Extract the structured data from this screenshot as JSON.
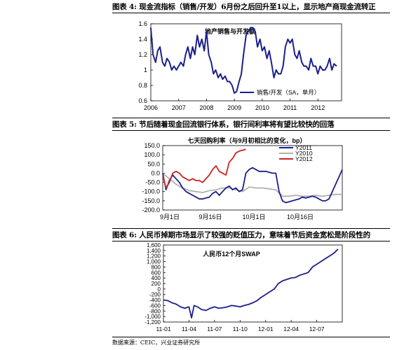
{
  "figures": [
    {
      "caption": "图表 4: 现金流指标（销售/开发）6月份之后回升至1以上，显示地产商现金流转正"
    },
    {
      "caption": "图表 5: 节后随着现金回流银行体系，银行间利率将有望比较快的回落"
    },
    {
      "caption": "图表 6: 人民币掉期市场显示了较强的贬值压力，意味着节后资金宽松是阶段性的"
    }
  ],
  "source": "数据来源：CEIC，兴业证券研究所",
  "colors": {
    "navy": "#1b1f8a",
    "gray": "#b0b0b0",
    "red": "#cc2222"
  },
  "chart_data": [
    {
      "type": "line",
      "title": "地产销售与开发额",
      "x_ticks": [
        "2006",
        "2007",
        "2008",
        "2009",
        "2010",
        "2011",
        "2012"
      ],
      "y_ticks": [
        "1.6",
        "1.4",
        "1.2",
        "1",
        "0.8",
        "0.6"
      ],
      "ylim": [
        0.6,
        1.6
      ],
      "legend": "top-right-bottom",
      "series": [
        {
          "name": "销售/开发（SA，单月）",
          "x": [
            2006.0,
            2006.08,
            2006.17,
            2006.25,
            2006.33,
            2006.42,
            2006.5,
            2006.58,
            2006.67,
            2006.75,
            2006.83,
            2006.92,
            2007.0,
            2007.08,
            2007.17,
            2007.25,
            2007.33,
            2007.42,
            2007.5,
            2007.58,
            2007.67,
            2007.75,
            2007.83,
            2007.92,
            2008.0,
            2008.08,
            2008.17,
            2008.25,
            2008.33,
            2008.42,
            2008.5,
            2008.58,
            2008.67,
            2008.75,
            2008.83,
            2008.92,
            2009.0,
            2009.08,
            2009.17,
            2009.25,
            2009.33,
            2009.42,
            2009.5,
            2009.58,
            2009.67,
            2009.75,
            2009.83,
            2009.92,
            2010.0,
            2010.08,
            2010.17,
            2010.25,
            2010.33,
            2010.42,
            2010.5,
            2010.58,
            2010.67,
            2010.75,
            2010.83,
            2010.92,
            2011.0,
            2011.08,
            2011.17,
            2011.25,
            2011.33,
            2011.42,
            2011.5,
            2011.58,
            2011.67,
            2011.75,
            2011.83,
            2011.92,
            2012.0,
            2012.08,
            2012.17,
            2012.25,
            2012.33,
            2012.42,
            2012.5,
            2012.58,
            2012.67
          ],
          "y": [
            1.55,
            1.2,
            1.1,
            1.25,
            1.3,
            1.1,
            1.05,
            1.15,
            1.1,
            1.0,
            1.05,
            1.0,
            1.05,
            1.1,
            1.05,
            1.2,
            1.3,
            1.15,
            1.3,
            1.2,
            1.45,
            1.3,
            1.4,
            1.25,
            1.5,
            1.2,
            1.1,
            0.95,
            1.0,
            0.9,
            0.95,
            0.88,
            0.92,
            0.85,
            0.85,
            0.8,
            0.7,
            0.72,
            0.85,
            0.95,
            1.2,
            1.45,
            1.5,
            1.55,
            1.55,
            1.5,
            1.3,
            1.4,
            1.25,
            1.3,
            1.15,
            1.25,
            1.1,
            0.9,
            1.0,
            0.95,
            0.95,
            1.05,
            1.3,
            1.4,
            1.35,
            1.4,
            1.2,
            1.15,
            1.25,
            1.1,
            1.05,
            1.05,
            1.0,
            1.15,
            1.05,
            1.05,
            0.95,
            1.05,
            1.0,
            1.0,
            1.05,
            1.15,
            1.0,
            1.08,
            1.05
          ]
        }
      ]
    },
    {
      "type": "line",
      "title": "七天回购利率（与9月初相比的变化，bp）",
      "x_ticks": [
        "9月1日",
        "9月16日",
        "10月1日",
        "10月16日"
      ],
      "y_ticks": [
        "150.0",
        "100.0",
        "50.0",
        "0.0",
        "-50.0",
        "-100.0",
        "-150.0",
        "-200.0"
      ],
      "ylim": [
        -200,
        150
      ],
      "legend": "top-right",
      "series": [
        {
          "name": "Y2011",
          "color": "navy",
          "x": [
            0,
            1,
            2,
            3,
            4,
            5,
            6,
            7,
            8,
            9,
            10,
            11,
            12,
            13,
            14,
            15,
            16,
            17,
            18,
            19,
            20,
            21,
            22,
            23,
            24,
            25,
            26,
            27,
            28,
            29,
            30,
            31,
            32,
            33,
            34,
            35,
            36,
            37,
            38,
            39,
            40,
            41,
            42,
            43,
            44,
            45,
            46,
            47,
            48,
            49,
            50,
            51,
            52,
            53,
            54
          ],
          "y": [
            0,
            -90,
            -40,
            -10,
            -30,
            -50,
            -80,
            -100,
            -110,
            -120,
            -130,
            -140,
            -140,
            -135,
            -130,
            -110,
            -100,
            -120,
            -100,
            -80,
            -70,
            -90,
            -80,
            -100,
            -90,
            0,
            20,
            30,
            20,
            10,
            10,
            10,
            5,
            0,
            0,
            -100,
            -150,
            -160,
            -155,
            -150,
            -145,
            -140,
            -130,
            -135,
            -130,
            -125,
            -130,
            -140,
            -150,
            -150,
            -140,
            -100,
            -60,
            -20,
            20
          ]
        },
        {
          "name": "Y2010",
          "color": "gray",
          "x": [
            0,
            2,
            4,
            6,
            8,
            10,
            12,
            14,
            16,
            18,
            20,
            22,
            24,
            26,
            28,
            30,
            32,
            34,
            36,
            38,
            40,
            42,
            44,
            46,
            48,
            50,
            52,
            54
          ],
          "y": [
            0,
            -30,
            -60,
            -80,
            -95,
            -100,
            -105,
            -95,
            -90,
            -80,
            -80,
            -90,
            -100,
            -75,
            -80,
            -80,
            -85,
            -90,
            -125,
            -125,
            -120,
            -125,
            -125,
            -120,
            -125,
            -120,
            -115,
            -115
          ]
        },
        {
          "name": "Y2012",
          "color": "red",
          "x": [
            0,
            1,
            2,
            3,
            4,
            5,
            6,
            7,
            8,
            9,
            10,
            11,
            12,
            13,
            14,
            15,
            16,
            17,
            18,
            19,
            20,
            21,
            22,
            23,
            24,
            25
          ],
          "y": [
            -10,
            -80,
            -50,
            0,
            10,
            0,
            -20,
            -30,
            -40,
            -30,
            -40,
            -40,
            -50,
            -30,
            -10,
            20,
            40,
            10,
            0,
            -10,
            60,
            80,
            110,
            120,
            125,
            130
          ]
        }
      ]
    },
    {
      "type": "line",
      "title": "人民币12个月SWAP",
      "x_ticks": [
        "11-01",
        "11-04",
        "11-07",
        "11-10",
        "12-01",
        "12-04",
        "12-07"
      ],
      "y_ticks": [
        "1,600",
        "1,400",
        "1,200",
        "1,000",
        "800",
        "600",
        "400",
        "200",
        "0",
        "-200",
        "-400",
        "-600",
        "-800",
        "-1,000",
        "-1,200"
      ],
      "ylim": [
        -1200,
        1600
      ],
      "series": [
        {
          "name": "",
          "x": [
            0,
            0.5,
            1,
            1.5,
            2,
            2.5,
            3,
            3.3,
            3.6,
            4,
            4.5,
            5,
            5.5,
            6,
            6.5,
            7,
            7.5,
            8,
            8.5,
            9,
            9.5,
            10,
            10.5,
            11,
            11.5,
            12,
            12.5,
            13,
            13.5,
            14,
            14.5,
            15,
            15.5,
            16,
            16.5,
            17,
            17.5,
            18,
            18.5,
            19,
            19.5,
            20,
            20.5
          ],
          "y": [
            -400,
            -420,
            -500,
            -550,
            -650,
            -700,
            -650,
            -1050,
            -600,
            -650,
            -750,
            -780,
            -700,
            -650,
            -700,
            -680,
            -650,
            -600,
            -620,
            -650,
            -600,
            -560,
            -500,
            -420,
            -300,
            -200,
            -100,
            0,
            200,
            300,
            350,
            400,
            420,
            500,
            550,
            600,
            800,
            900,
            1000,
            1100,
            1200,
            1300,
            1450
          ]
        }
      ]
    }
  ]
}
